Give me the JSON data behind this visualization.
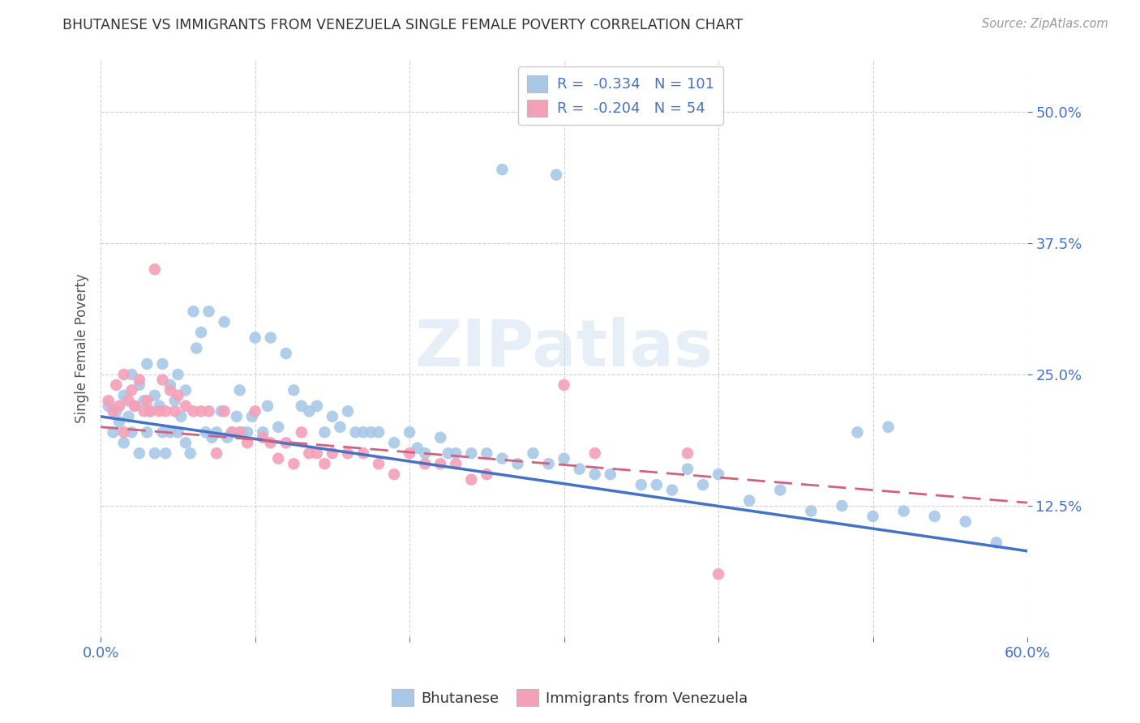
{
  "title": "BHUTANESE VS IMMIGRANTS FROM VENEZUELA SINGLE FEMALE POVERTY CORRELATION CHART",
  "source": "Source: ZipAtlas.com",
  "ylabel": "Single Female Poverty",
  "xlim": [
    0.0,
    0.6
  ],
  "ylim": [
    0.0,
    0.55
  ],
  "yticks": [
    0.125,
    0.25,
    0.375,
    0.5
  ],
  "ytick_labels": [
    "12.5%",
    "25.0%",
    "37.5%",
    "50.0%"
  ],
  "xticks": [
    0.0,
    0.1,
    0.2,
    0.3,
    0.4,
    0.5,
    0.6
  ],
  "xtick_labels": [
    "0.0%",
    "",
    "",
    "",
    "",
    "",
    "60.0%"
  ],
  "blue_color": "#a8c8e8",
  "pink_color": "#f4a0b8",
  "line_blue": "#4472c4",
  "line_pink": "#d46080",
  "line_blue_start_y": 0.21,
  "line_blue_end_y": 0.082,
  "line_pink_start_y": 0.2,
  "line_pink_end_y": 0.128,
  "watermark": "ZIPatlas",
  "legend_r_blue": "-0.334",
  "legend_n_blue": "101",
  "legend_r_pink": "-0.204",
  "legend_n_pink": "54",
  "background_color": "#ffffff",
  "grid_color": "#cccccc",
  "title_color": "#333333",
  "axis_label_color": "#555555",
  "tick_color": "#4472c4",
  "bhutanese_x": [
    0.005,
    0.008,
    0.01,
    0.012,
    0.015,
    0.015,
    0.018,
    0.02,
    0.02,
    0.022,
    0.025,
    0.025,
    0.028,
    0.03,
    0.03,
    0.032,
    0.035,
    0.035,
    0.038,
    0.04,
    0.04,
    0.042,
    0.045,
    0.045,
    0.048,
    0.05,
    0.05,
    0.052,
    0.055,
    0.055,
    0.058,
    0.06,
    0.062,
    0.065,
    0.068,
    0.07,
    0.072,
    0.075,
    0.078,
    0.08,
    0.082,
    0.085,
    0.088,
    0.09,
    0.092,
    0.095,
    0.098,
    0.1,
    0.105,
    0.108,
    0.11,
    0.115,
    0.12,
    0.125,
    0.13,
    0.135,
    0.14,
    0.145,
    0.15,
    0.155,
    0.16,
    0.165,
    0.17,
    0.175,
    0.18,
    0.19,
    0.2,
    0.205,
    0.21,
    0.22,
    0.225,
    0.23,
    0.24,
    0.25,
    0.26,
    0.27,
    0.28,
    0.29,
    0.3,
    0.31,
    0.32,
    0.33,
    0.35,
    0.36,
    0.37,
    0.38,
    0.39,
    0.4,
    0.42,
    0.44,
    0.46,
    0.48,
    0.5,
    0.52,
    0.54,
    0.56,
    0.58,
    0.26,
    0.295,
    0.49,
    0.51
  ],
  "bhutanese_y": [
    0.22,
    0.195,
    0.215,
    0.205,
    0.23,
    0.185,
    0.21,
    0.25,
    0.195,
    0.22,
    0.24,
    0.175,
    0.225,
    0.26,
    0.195,
    0.215,
    0.23,
    0.175,
    0.22,
    0.26,
    0.195,
    0.175,
    0.24,
    0.195,
    0.225,
    0.25,
    0.195,
    0.21,
    0.235,
    0.185,
    0.175,
    0.31,
    0.275,
    0.29,
    0.195,
    0.31,
    0.19,
    0.195,
    0.215,
    0.3,
    0.19,
    0.195,
    0.21,
    0.235,
    0.195,
    0.195,
    0.21,
    0.285,
    0.195,
    0.22,
    0.285,
    0.2,
    0.27,
    0.235,
    0.22,
    0.215,
    0.22,
    0.195,
    0.21,
    0.2,
    0.215,
    0.195,
    0.195,
    0.195,
    0.195,
    0.185,
    0.195,
    0.18,
    0.175,
    0.19,
    0.175,
    0.175,
    0.175,
    0.175,
    0.17,
    0.165,
    0.175,
    0.165,
    0.17,
    0.16,
    0.155,
    0.155,
    0.145,
    0.145,
    0.14,
    0.16,
    0.145,
    0.155,
    0.13,
    0.14,
    0.12,
    0.125,
    0.115,
    0.12,
    0.115,
    0.11,
    0.09,
    0.445,
    0.44,
    0.195,
    0.2
  ],
  "venezuela_x": [
    0.005,
    0.008,
    0.01,
    0.012,
    0.015,
    0.015,
    0.018,
    0.02,
    0.022,
    0.025,
    0.028,
    0.03,
    0.032,
    0.035,
    0.038,
    0.04,
    0.042,
    0.045,
    0.048,
    0.05,
    0.055,
    0.06,
    0.065,
    0.07,
    0.075,
    0.08,
    0.085,
    0.09,
    0.095,
    0.1,
    0.105,
    0.11,
    0.115,
    0.12,
    0.125,
    0.13,
    0.135,
    0.14,
    0.145,
    0.15,
    0.16,
    0.17,
    0.18,
    0.19,
    0.2,
    0.21,
    0.22,
    0.23,
    0.24,
    0.25,
    0.3,
    0.32,
    0.38,
    0.4
  ],
  "venezuela_y": [
    0.225,
    0.215,
    0.24,
    0.22,
    0.25,
    0.195,
    0.225,
    0.235,
    0.22,
    0.245,
    0.215,
    0.225,
    0.215,
    0.35,
    0.215,
    0.245,
    0.215,
    0.235,
    0.215,
    0.23,
    0.22,
    0.215,
    0.215,
    0.215,
    0.175,
    0.215,
    0.195,
    0.195,
    0.185,
    0.215,
    0.19,
    0.185,
    0.17,
    0.185,
    0.165,
    0.195,
    0.175,
    0.175,
    0.165,
    0.175,
    0.175,
    0.175,
    0.165,
    0.155,
    0.175,
    0.165,
    0.165,
    0.165,
    0.15,
    0.155,
    0.24,
    0.175,
    0.175,
    0.06
  ]
}
